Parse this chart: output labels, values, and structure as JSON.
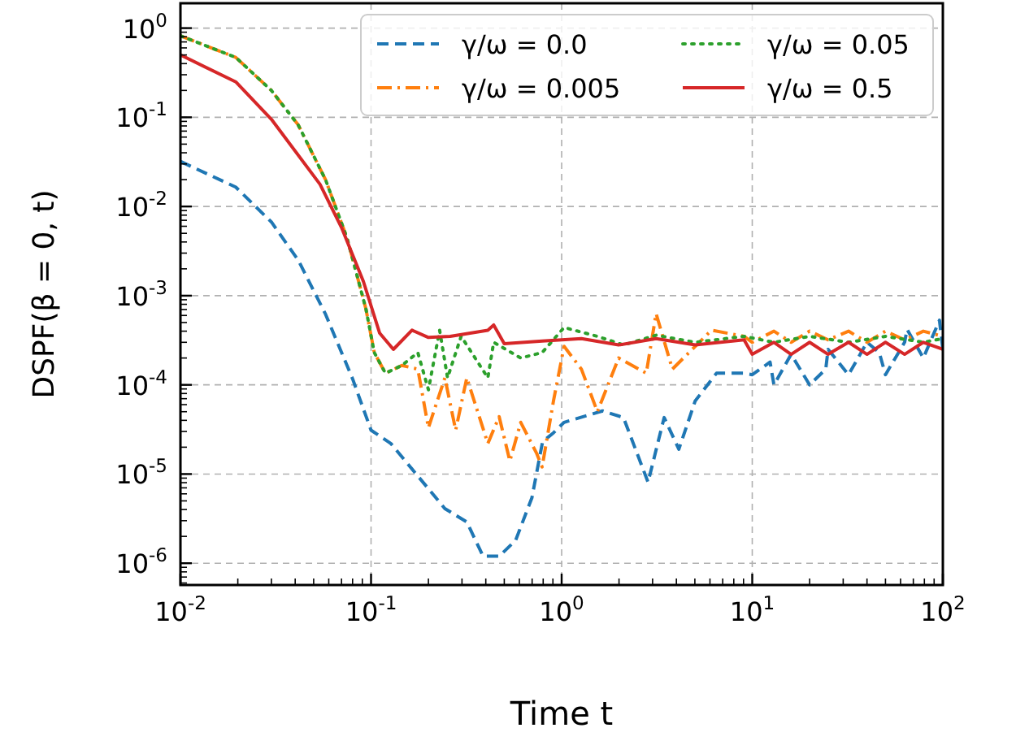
{
  "chart_data": {
    "type": "line",
    "xlabel": "Time t",
    "ylabel": "DSPF(β = 0, t)",
    "log": "xy",
    "grid": true,
    "legend": "top right",
    "xlim": [
      0.01,
      100
    ],
    "ylim": [
      5.7e-07,
      1.9
    ],
    "xticks": [
      {
        "value": 0.01,
        "label": "10$^{-2}$"
      },
      {
        "value": 0.02,
        "label": null
      },
      {
        "value": 0.03,
        "label": null
      },
      {
        "value": 0.04,
        "label": null
      },
      {
        "value": 0.05,
        "label": null
      },
      {
        "value": 0.06,
        "label": null
      },
      {
        "value": 0.07,
        "label": null
      },
      {
        "value": 0.08,
        "label": null
      },
      {
        "value": 0.09,
        "label": null
      },
      {
        "value": 0.1,
        "label": "10$^{-1}$"
      },
      {
        "value": 0.2,
        "label": null
      },
      {
        "value": 0.3,
        "label": null
      },
      {
        "value": 0.4,
        "label": null
      },
      {
        "value": 0.5,
        "label": null
      },
      {
        "value": 0.6,
        "label": null
      },
      {
        "value": 0.7,
        "label": null
      },
      {
        "value": 0.8,
        "label": null
      },
      {
        "value": 0.9,
        "label": null
      },
      {
        "value": 1,
        "label": "10$^{0}$"
      },
      {
        "value": 2,
        "label": null
      },
      {
        "value": 3,
        "label": null
      },
      {
        "value": 4,
        "label": null
      },
      {
        "value": 5,
        "label": null
      },
      {
        "value": 6,
        "label": null
      },
      {
        "value": 7,
        "label": null
      },
      {
        "value": 8,
        "label": null
      },
      {
        "value": 9,
        "label": null
      },
      {
        "value": 10,
        "label": "10$^{1}$"
      },
      {
        "value": 20,
        "label": null
      },
      {
        "value": 30,
        "label": null
      },
      {
        "value": 40,
        "label": null
      },
      {
        "value": 50,
        "label": null
      },
      {
        "value": 60,
        "label": null
      },
      {
        "value": 70,
        "label": null
      },
      {
        "value": 80,
        "label": null
      },
      {
        "value": 90,
        "label": null
      },
      {
        "value": 100,
        "label": "10$^{2}$"
      }
    ],
    "yticks": [
      {
        "value": 6e-07,
        "label": null
      },
      {
        "value": 7e-07,
        "label": null
      },
      {
        "value": 8e-07,
        "label": null
      },
      {
        "value": 9e-07,
        "label": null
      },
      {
        "value": 1e-06,
        "label": "10$^{-6}$"
      },
      {
        "value": 2e-06,
        "label": null
      },
      {
        "value": 3e-06,
        "label": null
      },
      {
        "value": 4e-06,
        "label": null
      },
      {
        "value": 5e-06,
        "label": null
      },
      {
        "value": 6e-06,
        "label": null
      },
      {
        "value": 7e-06,
        "label": null
      },
      {
        "value": 8e-06,
        "label": null
      },
      {
        "value": 9e-06,
        "label": null
      },
      {
        "value": 1e-05,
        "label": "10$^{-5}$"
      },
      {
        "value": 2e-05,
        "label": null
      },
      {
        "value": 3e-05,
        "label": null
      },
      {
        "value": 4e-05,
        "label": null
      },
      {
        "value": 5e-05,
        "label": null
      },
      {
        "value": 6e-05,
        "label": null
      },
      {
        "value": 7e-05,
        "label": null
      },
      {
        "value": 8e-05,
        "label": null
      },
      {
        "value": 9e-05,
        "label": null
      },
      {
        "value": 0.0001,
        "label": "10$^{-4}$"
      },
      {
        "value": 0.0002,
        "label": null
      },
      {
        "value": 0.0003,
        "label": null
      },
      {
        "value": 0.0004,
        "label": null
      },
      {
        "value": 0.0005,
        "label": null
      },
      {
        "value": 0.0006,
        "label": null
      },
      {
        "value": 0.0007,
        "label": null
      },
      {
        "value": 0.0008,
        "label": null
      },
      {
        "value": 0.0009,
        "label": null
      },
      {
        "value": 0.001,
        "label": "10$^{-3}$"
      },
      {
        "value": 0.002,
        "label": null
      },
      {
        "value": 0.003,
        "label": null
      },
      {
        "value": 0.004,
        "label": null
      },
      {
        "value": 0.005,
        "label": null
      },
      {
        "value": 0.006,
        "label": null
      },
      {
        "value": 0.007,
        "label": null
      },
      {
        "value": 0.008,
        "label": null
      },
      {
        "value": 0.009,
        "label": null
      },
      {
        "value": 0.01,
        "label": "10$^{-2}$"
      },
      {
        "value": 0.02,
        "label": null
      },
      {
        "value": 0.03,
        "label": null
      },
      {
        "value": 0.04,
        "label": null
      },
      {
        "value": 0.05,
        "label": null
      },
      {
        "value": 0.06,
        "label": null
      },
      {
        "value": 0.07,
        "label": null
      },
      {
        "value": 0.08,
        "label": null
      },
      {
        "value": 0.09,
        "label": null
      },
      {
        "value": 0.1,
        "label": "10$^{-1}$"
      },
      {
        "value": 0.2,
        "label": null
      },
      {
        "value": 0.3,
        "label": null
      },
      {
        "value": 0.4,
        "label": null
      },
      {
        "value": 0.5,
        "label": null
      },
      {
        "value": 0.6,
        "label": null
      },
      {
        "value": 0.7,
        "label": null
      },
      {
        "value": 0.8,
        "label": null
      },
      {
        "value": 0.9,
        "label": null
      },
      {
        "value": 1,
        "label": "10$^{0}$"
      }
    ],
    "series": [
      {
        "name": "γ/ω = 0.0",
        "color": "#1f77b4",
        "line_style": "dashed",
        "x": [
          0.01,
          0.0195,
          0.03,
          0.0415,
          0.0577,
          0.08,
          0.1,
          0.127,
          0.176,
          0.244,
          0.318,
          0.387,
          0.471,
          0.573,
          0.698,
          0.794,
          0.906,
          1.03,
          1.64,
          2.11,
          2.84,
          3.45,
          4.12,
          5.02,
          6.49,
          9.06,
          10,
          12.4,
          13,
          16,
          20,
          24.3,
          25,
          32,
          40,
          46.4,
          50,
          63,
          64.9,
          79,
          96,
          100
        ],
        "values": [
          0.032,
          0.0165,
          0.0067,
          0.0025,
          0.00062,
          0.000117,
          3.1e-05,
          2.2e-05,
          9.5e-06,
          4.1e-06,
          2.9e-06,
          1.2e-06,
          1.2e-06,
          1.8e-06,
          5.4e-06,
          2.3e-05,
          2.9e-05,
          3.8e-05,
          5.1e-05,
          4.3e-05,
          8.1e-06,
          4.3e-05,
          1.9e-05,
          6.6e-05,
          0.000135,
          0.000135,
          0.00013,
          0.00018,
          0.0001,
          0.00022,
          0.0001,
          0.00015,
          0.00025,
          0.00013,
          0.0003,
          0.00023,
          0.00013,
          0.0003,
          0.00042,
          0.0002,
          0.00053,
          0.00025
        ]
      },
      {
        "name": "γ/ω = 0.005",
        "color": "#ff7f0e",
        "line_style": "dashdot",
        "x": [
          0.01,
          0.0195,
          0.03,
          0.0415,
          0.0577,
          0.0749,
          0.094,
          0.104,
          0.119,
          0.145,
          0.176,
          0.2,
          0.244,
          0.278,
          0.318,
          0.41,
          0.47,
          0.535,
          0.61,
          0.74,
          0.79,
          0.906,
          1.03,
          1.27,
          1.54,
          1.99,
          2.78,
          3.13,
          3.81,
          5.02,
          6.11,
          9.06,
          10,
          13,
          16,
          20,
          25,
          32,
          40,
          50,
          63,
          79,
          100
        ],
        "values": [
          0.82,
          0.47,
          0.2,
          0.082,
          0.02,
          0.0044,
          0.00071,
          0.00023,
          0.000135,
          0.000165,
          0.00015,
          3.3e-05,
          0.00012,
          3.1e-05,
          0.00012,
          2.2e-05,
          4.4e-05,
          1.4e-05,
          3.8e-05,
          1.7e-05,
          1.2e-05,
          6.6e-05,
          0.00027,
          0.00015,
          5e-05,
          0.0002,
          0.000135,
          0.00063,
          0.00015,
          0.00027,
          0.00041,
          0.00035,
          0.0003,
          0.0004,
          0.0003,
          0.0004,
          0.00032,
          0.0004,
          0.0003,
          0.0004,
          0.00032,
          0.0004,
          0.00035
        ]
      },
      {
        "name": "γ/ω = 0.05",
        "color": "#2ca02c",
        "line_style": "dotted",
        "x": [
          0.01,
          0.0195,
          0.03,
          0.0415,
          0.0577,
          0.0749,
          0.094,
          0.104,
          0.119,
          0.145,
          0.176,
          0.2,
          0.229,
          0.252,
          0.297,
          0.41,
          0.44,
          0.61,
          0.79,
          1.03,
          1.54,
          2.11,
          3.13,
          5.02,
          9.06,
          13,
          20,
          32,
          50,
          79,
          100
        ],
        "values": [
          0.82,
          0.47,
          0.2,
          0.082,
          0.02,
          0.0044,
          0.00071,
          0.00023,
          0.000135,
          0.000165,
          0.00023,
          8.8e-05,
          0.00041,
          0.00012,
          0.00035,
          0.00012,
          0.0003,
          0.0002,
          0.00023,
          0.00044,
          0.00035,
          0.00028,
          0.00036,
          0.0003,
          0.00035,
          0.0003,
          0.00035,
          0.0003,
          0.00035,
          0.0003,
          0.00033
        ]
      },
      {
        "name": "γ/ω = 0.5",
        "color": "#d62728",
        "line_style": "solid",
        "x": [
          0.01,
          0.0195,
          0.03,
          0.054,
          0.07,
          0.0912,
          0.111,
          0.131,
          0.164,
          0.2,
          0.26,
          0.41,
          0.44,
          0.5,
          0.79,
          1.27,
          1.99,
          3.13,
          5.02,
          9.06,
          10,
          13,
          16,
          20,
          25,
          32,
          40,
          50,
          63,
          79,
          100
        ],
        "values": [
          0.5,
          0.25,
          0.095,
          0.0177,
          0.0058,
          0.00144,
          0.00038,
          0.00025,
          0.00041,
          0.00034,
          0.00035,
          0.00041,
          0.00047,
          0.00029,
          0.00031,
          0.00033,
          0.00028,
          0.00033,
          0.00028,
          0.00032,
          0.00022,
          0.0003,
          0.00022,
          0.0003,
          0.00022,
          0.0003,
          0.00022,
          0.0003,
          0.00022,
          0.0003,
          0.00025
        ]
      }
    ]
  }
}
